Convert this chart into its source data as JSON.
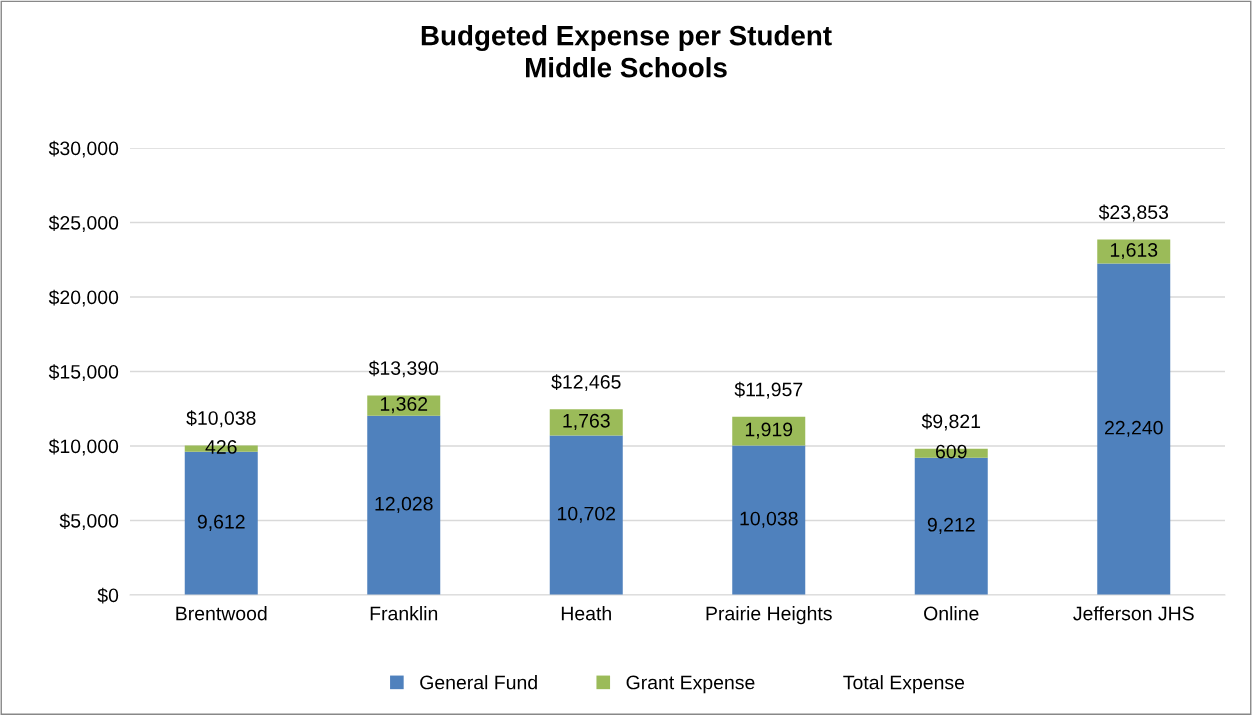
{
  "chart_data": {
    "type": "bar",
    "stacked": true,
    "title": "Budgeted Expense per Student\nMiddle Schools",
    "categories": [
      "Brentwood",
      "Franklin",
      "Heath",
      "Prairie Heights",
      "Online",
      "Jefferson JHS"
    ],
    "series": [
      {
        "name": "General Fund",
        "color": "#4f81bd",
        "values": [
          9612,
          12028,
          10702,
          10038,
          9212,
          22240
        ],
        "value_labels": [
          "9,612",
          "12,028",
          "10,702",
          "10,038",
          "9,212",
          "22,240"
        ]
      },
      {
        "name": "Grant Expense",
        "color": "#9bbb59",
        "values": [
          426,
          1362,
          1763,
          1919,
          609,
          1613
        ],
        "value_labels": [
          "426",
          "1,362",
          "1,763",
          "1,919",
          "609",
          "1,613"
        ]
      },
      {
        "name": "Total Expense",
        "type": "line",
        "color": null,
        "values": [
          null,
          null,
          null,
          null,
          null,
          null
        ]
      }
    ],
    "totals": [
      "$10,038",
      "$13,390",
      "$12,465",
      "$11,957",
      "$9,821",
      "$23,853"
    ],
    "ylim": [
      0,
      30000
    ],
    "yticks": [
      {
        "value": 0,
        "label": "$0"
      },
      {
        "value": 5000,
        "label": "$5,000"
      },
      {
        "value": 10000,
        "label": "$10,000"
      },
      {
        "value": 15000,
        "label": "$15,000"
      },
      {
        "value": 20000,
        "label": "$20,000"
      },
      {
        "value": 25000,
        "label": "$25,000"
      },
      {
        "value": 30000,
        "label": "$30,000"
      }
    ],
    "grid": "y",
    "legend": "bottom"
  }
}
